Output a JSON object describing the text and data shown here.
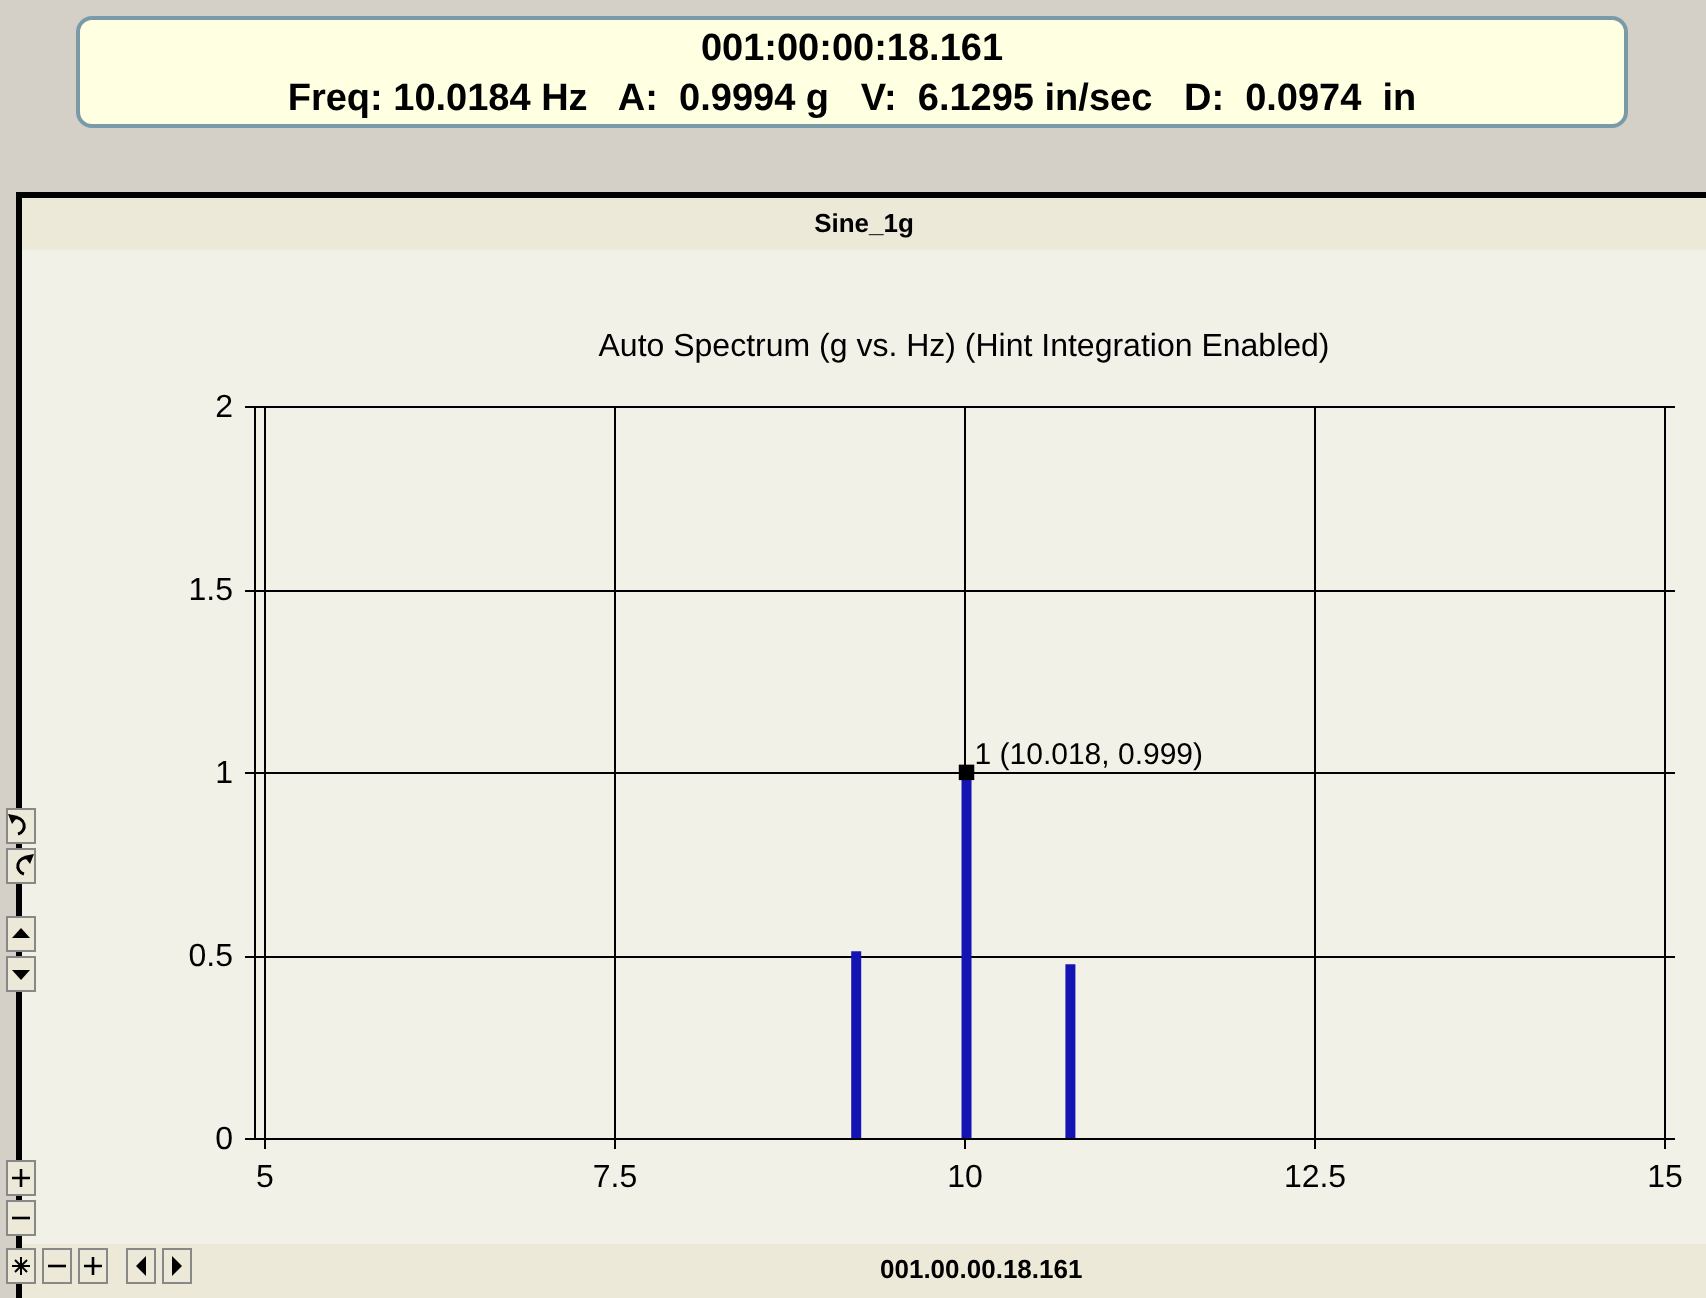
{
  "chart_data": {
    "type": "bar",
    "title": "Sine_1g",
    "subtitle": "Auto Spectrum  (g vs. Hz)  (Hint Integration Enabled)",
    "x": [
      9.23,
      10.018,
      10.76
    ],
    "values": [
      0.51,
      0.999,
      0.475
    ],
    "color": "#1414b4",
    "xlim": [
      5,
      15
    ],
    "xticks": [
      5,
      7.5,
      10,
      12.5,
      15
    ],
    "ylim": [
      0,
      2
    ],
    "yticks": [
      0,
      0.5,
      1,
      1.5,
      2
    ],
    "grid": true,
    "annotations": [
      "001:00:00:18.161",
      "Freq: 10.0184 Hz   A:  0.9994 g   V:  6.1295 in/sec   D:  0.0974  in",
      {
        "text": "1 (10.018, 0.999)",
        "x": 10.018,
        "y": 0.999
      },
      "001.00.00.18.161"
    ]
  }
}
